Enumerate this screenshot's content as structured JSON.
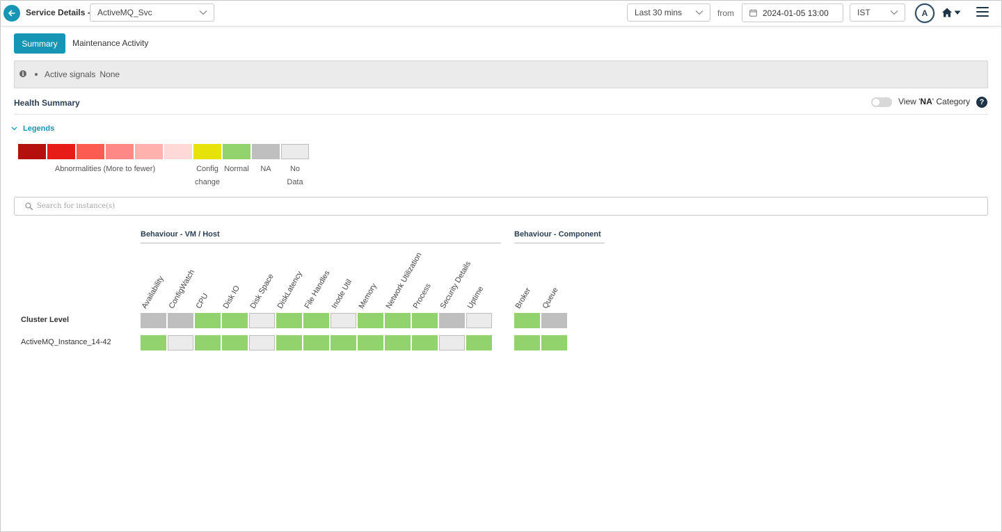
{
  "header": {
    "title": "Service Details -",
    "service": "ActiveMQ_Svc",
    "time_range": "Last 30 mins",
    "from_label": "from",
    "date": "2024-01-05 13:00",
    "timezone": "IST",
    "avatar_initial": "A"
  },
  "tabs": {
    "summary": "Summary",
    "maintenance": "Maintenance Activity"
  },
  "signals": {
    "label": "Active signals",
    "value": "None"
  },
  "health": {
    "title": "Health Summary",
    "view_na_prefix": "View '",
    "view_na_bold": "NA",
    "view_na_suffix": "' Category",
    "help": "?",
    "legends_title": "Legends",
    "legend_labels": {
      "abnormal": "Abnormalities (More to fewer)",
      "config": "Config change",
      "normal": "Normal",
      "na": "NA",
      "nodata": "No Data"
    }
  },
  "colors": {
    "accent": "#1696b4",
    "abnormal_scale": [
      "#b4100e",
      "#e71c18",
      "#fc5b52",
      "#fd8886",
      "#feb1ad",
      "#fed9d7"
    ],
    "config": "#e7e20a",
    "normal": "#92d36e",
    "na": "#bfbfbf",
    "nodata": "#ebebeb"
  },
  "search": {
    "placeholder": "Search for instance(s)"
  },
  "grid": {
    "groups": {
      "vm_host": "Behaviour - VM / Host",
      "component": "Behaviour - Component"
    },
    "vm_columns": [
      "Availability",
      "ConfigWatch",
      "CPU",
      "Disk IO",
      "Disk Space",
      "DiskLatency",
      "File Handles",
      "Inode Util",
      "Memory",
      "Network Utilization",
      "Process",
      "Security Details",
      "Uptime"
    ],
    "component_columns": [
      "Broker",
      "Queue"
    ],
    "rows": [
      {
        "label": "Cluster Level",
        "vm": [
          "na",
          "na",
          "normal",
          "normal",
          "nodata",
          "normal",
          "normal",
          "nodata",
          "normal",
          "normal",
          "normal",
          "na",
          "nodata"
        ],
        "component": [
          "normal",
          "na"
        ]
      },
      {
        "label": "ActiveMQ_Instance_14-42",
        "vm": [
          "normal",
          "nodata",
          "normal",
          "normal",
          "nodata",
          "normal",
          "normal",
          "normal",
          "normal",
          "normal",
          "normal",
          "nodata",
          "normal"
        ],
        "component": [
          "normal",
          "normal"
        ]
      }
    ]
  }
}
